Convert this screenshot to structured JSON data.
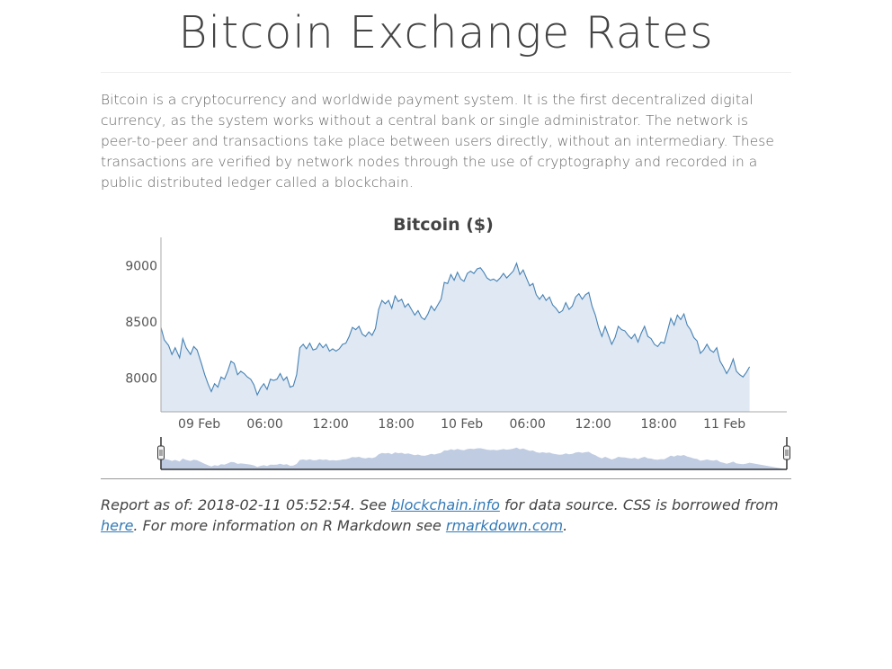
{
  "page": {
    "title": "Bitcoin Exchange Rates",
    "intro": "Bitcoin is a cryptocurrency and worldwide payment system. It is the first decentralized digital currency, as the system works without a central bank or single administrator. The network is peer-to-peer and transactions take place between users directly, without an intermediary. These transactions are verified by network nodes through the use of cryptography and recorded in a public distributed ledger called a blockchain."
  },
  "footer": {
    "prefix": "Report as of: 2018-02-11 05:52:54. See ",
    "link1": "blockchain.info",
    "mid1": " for data source. CSS is borrowed from ",
    "link2": "here",
    "mid2": ". For more information on R Markdown see ",
    "link3": "rmarkdown.com",
    "suffix": "."
  },
  "colors": {
    "line": "#4682b4",
    "area": "#dfe8f3",
    "navigator": "#b4c3dd"
  },
  "chart_data": {
    "type": "area",
    "title": "Bitcoin ($)",
    "x_unit": "hour",
    "x_origin": "2018-02-08 20:30",
    "ylim": [
      7700,
      9250
    ],
    "yticks": [
      8000,
      8500,
      9000
    ],
    "xticks": [
      {
        "hour": 3.5,
        "label": "09 Feb"
      },
      {
        "hour": 9.5,
        "label": "06:00"
      },
      {
        "hour": 15.5,
        "label": "12:00"
      },
      {
        "hour": 21.5,
        "label": "18:00"
      },
      {
        "hour": 27.5,
        "label": "10 Feb"
      },
      {
        "hour": 33.5,
        "label": "06:00"
      },
      {
        "hour": 39.5,
        "label": "12:00"
      },
      {
        "hour": 45.5,
        "label": "18:00"
      },
      {
        "hour": 51.5,
        "label": "11 Feb"
      }
    ],
    "xlim": [
      0,
      57.2
    ],
    "navigator": true,
    "points": [
      [
        0.0,
        8450
      ],
      [
        0.3,
        8340
      ],
      [
        0.7,
        8290
      ],
      [
        1.0,
        8210
      ],
      [
        1.3,
        8270
      ],
      [
        1.7,
        8180
      ],
      [
        2.0,
        8350
      ],
      [
        2.3,
        8270
      ],
      [
        2.7,
        8210
      ],
      [
        3.0,
        8280
      ],
      [
        3.3,
        8250
      ],
      [
        3.7,
        8130
      ],
      [
        4.0,
        8030
      ],
      [
        4.3,
        7950
      ],
      [
        4.6,
        7880
      ],
      [
        4.9,
        7950
      ],
      [
        5.2,
        7920
      ],
      [
        5.5,
        8010
      ],
      [
        5.8,
        7990
      ],
      [
        6.1,
        8060
      ],
      [
        6.4,
        8150
      ],
      [
        6.7,
        8130
      ],
      [
        7.0,
        8030
      ],
      [
        7.3,
        8060
      ],
      [
        7.6,
        8040
      ],
      [
        7.9,
        8010
      ],
      [
        8.2,
        7990
      ],
      [
        8.5,
        7940
      ],
      [
        8.8,
        7850
      ],
      [
        9.1,
        7910
      ],
      [
        9.4,
        7950
      ],
      [
        9.7,
        7900
      ],
      [
        10.0,
        7990
      ],
      [
        10.3,
        7980
      ],
      [
        10.6,
        7990
      ],
      [
        10.9,
        8040
      ],
      [
        11.2,
        7980
      ],
      [
        11.5,
        8010
      ],
      [
        11.8,
        7920
      ],
      [
        12.1,
        7930
      ],
      [
        12.4,
        8030
      ],
      [
        12.7,
        8270
      ],
      [
        13.0,
        8300
      ],
      [
        13.3,
        8260
      ],
      [
        13.6,
        8310
      ],
      [
        13.9,
        8250
      ],
      [
        14.2,
        8260
      ],
      [
        14.5,
        8310
      ],
      [
        14.8,
        8270
      ],
      [
        15.1,
        8300
      ],
      [
        15.4,
        8240
      ],
      [
        15.7,
        8260
      ],
      [
        16.0,
        8240
      ],
      [
        16.3,
        8260
      ],
      [
        16.6,
        8300
      ],
      [
        16.9,
        8310
      ],
      [
        17.2,
        8370
      ],
      [
        17.5,
        8450
      ],
      [
        17.8,
        8430
      ],
      [
        18.1,
        8460
      ],
      [
        18.4,
        8390
      ],
      [
        18.7,
        8370
      ],
      [
        19.0,
        8410
      ],
      [
        19.3,
        8380
      ],
      [
        19.6,
        8440
      ],
      [
        19.9,
        8610
      ],
      [
        20.2,
        8690
      ],
      [
        20.5,
        8660
      ],
      [
        20.8,
        8690
      ],
      [
        21.1,
        8620
      ],
      [
        21.4,
        8730
      ],
      [
        21.7,
        8680
      ],
      [
        22.0,
        8700
      ],
      [
        22.3,
        8630
      ],
      [
        22.6,
        8660
      ],
      [
        22.9,
        8610
      ],
      [
        23.2,
        8560
      ],
      [
        23.5,
        8600
      ],
      [
        23.8,
        8540
      ],
      [
        24.1,
        8520
      ],
      [
        24.4,
        8570
      ],
      [
        24.7,
        8640
      ],
      [
        25.0,
        8600
      ],
      [
        25.3,
        8650
      ],
      [
        25.6,
        8700
      ],
      [
        25.9,
        8850
      ],
      [
        26.2,
        8840
      ],
      [
        26.5,
        8920
      ],
      [
        26.8,
        8870
      ],
      [
        27.1,
        8940
      ],
      [
        27.4,
        8880
      ],
      [
        27.7,
        8860
      ],
      [
        28.0,
        8930
      ],
      [
        28.3,
        8950
      ],
      [
        28.6,
        8930
      ],
      [
        28.9,
        8970
      ],
      [
        29.2,
        8980
      ],
      [
        29.5,
        8940
      ],
      [
        29.8,
        8890
      ],
      [
        30.1,
        8870
      ],
      [
        30.4,
        8880
      ],
      [
        30.7,
        8860
      ],
      [
        31.0,
        8890
      ],
      [
        31.3,
        8930
      ],
      [
        31.6,
        8890
      ],
      [
        31.9,
        8920
      ],
      [
        32.2,
        8950
      ],
      [
        32.5,
        9020
      ],
      [
        32.8,
        8920
      ],
      [
        33.1,
        8960
      ],
      [
        33.4,
        8890
      ],
      [
        33.7,
        8820
      ],
      [
        34.0,
        8840
      ],
      [
        34.3,
        8740
      ],
      [
        34.6,
        8700
      ],
      [
        34.9,
        8740
      ],
      [
        35.2,
        8690
      ],
      [
        35.5,
        8720
      ],
      [
        35.8,
        8650
      ],
      [
        36.1,
        8620
      ],
      [
        36.4,
        8580
      ],
      [
        36.7,
        8600
      ],
      [
        37.0,
        8670
      ],
      [
        37.3,
        8610
      ],
      [
        37.6,
        8640
      ],
      [
        37.9,
        8720
      ],
      [
        38.2,
        8750
      ],
      [
        38.5,
        8700
      ],
      [
        38.8,
        8740
      ],
      [
        39.1,
        8760
      ],
      [
        39.4,
        8640
      ],
      [
        39.7,
        8560
      ],
      [
        40.0,
        8450
      ],
      [
        40.3,
        8370
      ],
      [
        40.6,
        8460
      ],
      [
        40.9,
        8380
      ],
      [
        41.2,
        8300
      ],
      [
        41.5,
        8360
      ],
      [
        41.8,
        8460
      ],
      [
        42.1,
        8430
      ],
      [
        42.4,
        8420
      ],
      [
        42.7,
        8380
      ],
      [
        43.0,
        8350
      ],
      [
        43.3,
        8390
      ],
      [
        43.6,
        8320
      ],
      [
        43.9,
        8400
      ],
      [
        44.2,
        8460
      ],
      [
        44.5,
        8370
      ],
      [
        44.8,
        8350
      ],
      [
        45.1,
        8300
      ],
      [
        45.4,
        8280
      ],
      [
        45.7,
        8320
      ],
      [
        46.0,
        8310
      ],
      [
        46.3,
        8420
      ],
      [
        46.6,
        8530
      ],
      [
        46.9,
        8470
      ],
      [
        47.2,
        8560
      ],
      [
        47.5,
        8520
      ],
      [
        47.8,
        8570
      ],
      [
        48.1,
        8470
      ],
      [
        48.4,
        8430
      ],
      [
        48.7,
        8360
      ],
      [
        49.0,
        8330
      ],
      [
        49.3,
        8220
      ],
      [
        49.6,
        8250
      ],
      [
        49.9,
        8300
      ],
      [
        50.2,
        8250
      ],
      [
        50.5,
        8230
      ],
      [
        50.8,
        8270
      ],
      [
        51.1,
        8150
      ],
      [
        51.4,
        8100
      ],
      [
        51.7,
        8040
      ],
      [
        52.0,
        8090
      ],
      [
        52.3,
        8170
      ],
      [
        52.6,
        8060
      ],
      [
        52.9,
        8030
      ],
      [
        53.2,
        8010
      ],
      [
        53.5,
        8050
      ],
      [
        53.8,
        8100
      ]
    ]
  }
}
